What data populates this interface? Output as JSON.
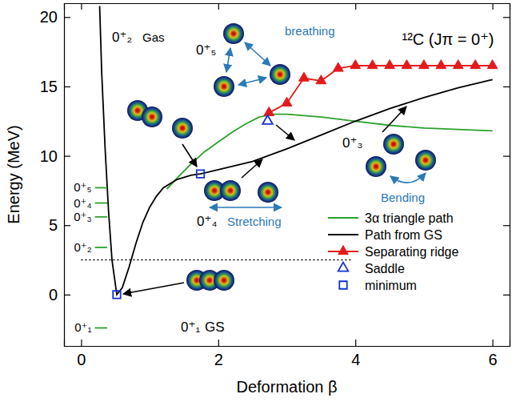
{
  "chart_data": {
    "type": "line",
    "title": "¹²C (Jπ = 0⁺)",
    "x_label": "Deformation β",
    "y_label": "Energy (MeV)",
    "xlim": [
      -0.25,
      6.25
    ],
    "ylim": [
      -3.7,
      21
    ],
    "xticks": [
      0,
      2,
      4,
      6
    ],
    "yticks": [
      0,
      5,
      10,
      15,
      20
    ],
    "grid": false,
    "legend": "lower right",
    "series": [
      {
        "name": "3α triangle path",
        "type": "line",
        "color": "#2ca02c",
        "line_style": "solid",
        "x": [
          1.25,
          1.4,
          1.6,
          1.8,
          2.0,
          2.2,
          2.4,
          2.6,
          2.8,
          3.0,
          3.5,
          4.0,
          4.5,
          5.0,
          5.5,
          6.0
        ],
        "values": [
          7.6,
          8.4,
          9.4,
          10.3,
          11.0,
          11.7,
          12.3,
          12.8,
          13.0,
          13.0,
          12.8,
          12.5,
          12.2,
          12.0,
          11.9,
          11.8
        ]
      },
      {
        "name": "Path from GS",
        "type": "line",
        "color": "#000000",
        "line_style": "solid",
        "x": [
          0.27,
          0.3,
          0.35,
          0.4,
          0.45,
          0.52,
          0.6,
          0.7,
          0.8,
          0.9,
          1.0,
          1.1,
          1.2,
          1.4,
          1.6,
          1.74,
          2.0,
          2.5,
          3.0,
          3.5,
          4.0,
          4.5,
          5.0,
          5.5,
          6.0
        ],
        "values": [
          20.8,
          16.0,
          10.5,
          6.0,
          2.5,
          0.0,
          0.5,
          2.0,
          3.7,
          5.2,
          6.3,
          7.1,
          7.7,
          8.3,
          8.6,
          8.7,
          9.0,
          9.6,
          10.5,
          11.5,
          12.5,
          13.4,
          14.2,
          14.9,
          15.5
        ]
      },
      {
        "name": "Separating ridge",
        "type": "line",
        "color": "#e31a1c",
        "line_style": "solid",
        "marker": "triangle",
        "x": [
          2.74,
          3.0,
          3.25,
          3.5,
          3.75,
          4.0,
          4.25,
          4.5,
          4.75,
          5.0,
          5.25,
          5.5,
          5.75,
          6.0
        ],
        "values": [
          13.1,
          13.8,
          15.6,
          15.4,
          16.3,
          16.5,
          16.5,
          16.5,
          16.5,
          16.5,
          16.5,
          16.5,
          16.5,
          16.5
        ]
      },
      {
        "name": "Saddle",
        "type": "scatter",
        "color": "#1533d0",
        "marker": "triangle-open",
        "x": [
          2.72
        ],
        "values": [
          12.5
        ]
      },
      {
        "name": "minimum",
        "type": "scatter",
        "color": "#1533d0",
        "marker": "square-open",
        "x": [
          0.52,
          1.74
        ],
        "values": [
          0.0,
          8.7
        ]
      },
      {
        "type": "levels",
        "color": "#2ca02c",
        "line_style": "solid",
        "x_range": [
          0.2,
          0.38
        ],
        "labels": [
          "0⁺₁",
          "0⁺₂",
          "0⁺₃",
          "0⁺₄",
          "0⁺₅"
        ],
        "values": [
          -2.4,
          3.4,
          5.6,
          6.6,
          7.7
        ]
      },
      {
        "type": "hline",
        "color": "#000000",
        "line_style": "dotted",
        "x_range": [
          0,
          3.95
        ],
        "values": [
          2.5
        ]
      }
    ],
    "annotations": [
      "0⁺₁",
      "GS",
      "0⁺₂",
      "Gas",
      "0⁺₄",
      "Stretching",
      "0⁺₅",
      "breathing",
      "0⁺₃",
      "Bending"
    ]
  }
}
